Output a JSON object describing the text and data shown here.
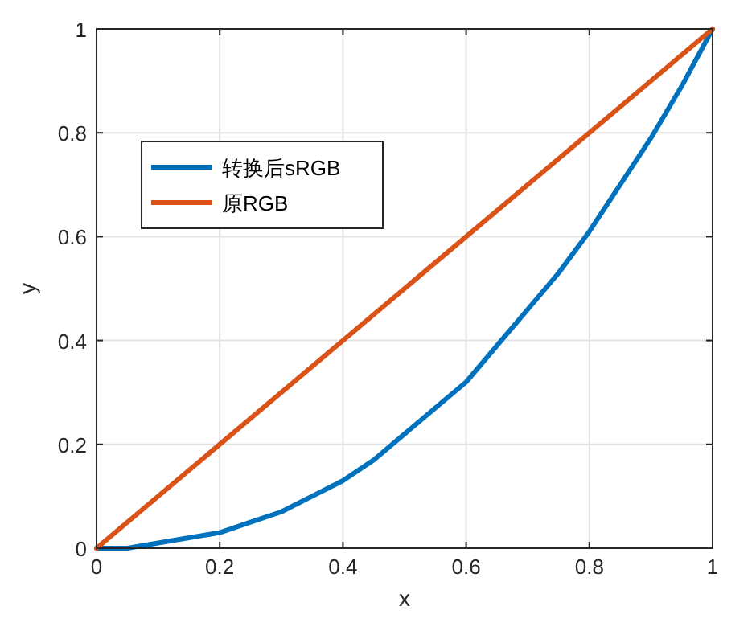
{
  "chart_data": {
    "type": "line",
    "xlabel": "x",
    "ylabel": "y",
    "xlim": [
      0,
      1
    ],
    "ylim": [
      0,
      1
    ],
    "xticks": [
      0,
      0.2,
      0.4,
      0.6,
      0.8,
      1
    ],
    "yticks": [
      0,
      0.2,
      0.4,
      0.6,
      0.8,
      1
    ],
    "grid": true,
    "legend": "top left",
    "line_style": "solid",
    "series": [
      {
        "name": "转换后sRGB",
        "color": "#0072bd",
        "x": [
          0,
          0.05,
          0.1,
          0.15,
          0.2,
          0.25,
          0.3,
          0.35,
          0.4,
          0.45,
          0.5,
          0.55,
          0.6,
          0.65,
          0.7,
          0.75,
          0.8,
          0.85,
          0.9,
          0.95,
          1
        ],
        "values": [
          0,
          0,
          0.01,
          0.02,
          0.03,
          0.05,
          0.07,
          0.1,
          0.13,
          0.17,
          0.22,
          0.27,
          0.32,
          0.39,
          0.46,
          0.53,
          0.61,
          0.7,
          0.79,
          0.89,
          1
        ]
      },
      {
        "name": "原RGB",
        "color": "#d95319",
        "x": [
          0,
          1
        ],
        "values": [
          0,
          1
        ]
      }
    ]
  }
}
